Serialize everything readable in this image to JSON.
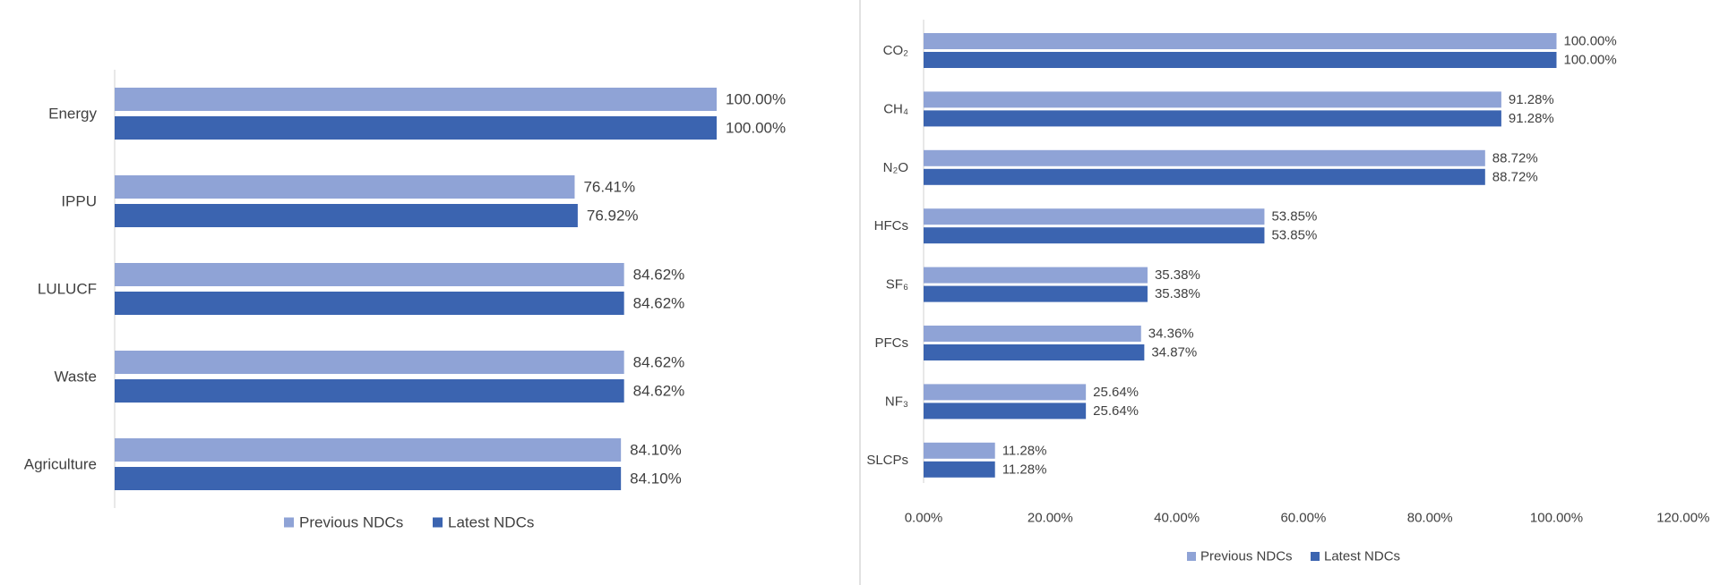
{
  "chart_data": [
    {
      "type": "bar",
      "orientation": "horizontal",
      "categories": [
        "Energy",
        "IPPU",
        "LULUCF",
        "Waste",
        "Agriculture"
      ],
      "series": [
        {
          "name": "Previous NDCs",
          "values": [
            100.0,
            76.41,
            84.62,
            84.62,
            84.1
          ],
          "labels": [
            "100.00%",
            "76.41%",
            "84.62%",
            "84.62%",
            "84.10%"
          ],
          "color": "#8FA3D6"
        },
        {
          "name": "Latest NDCs",
          "values": [
            100.0,
            76.92,
            84.62,
            84.62,
            84.1
          ],
          "labels": [
            "100.00%",
            "76.92%",
            "84.62%",
            "84.62%",
            "84.10%"
          ],
          "color": "#3B64B0"
        }
      ],
      "xlim": [
        0,
        100
      ],
      "xticks": [],
      "grid": false,
      "legend": "bottom"
    },
    {
      "type": "bar",
      "orientation": "horizontal",
      "categories": [
        "CO₂",
        "CH₄",
        "N₂O",
        "HFCs",
        "SF₆",
        "PFCs",
        "NF₃",
        "SLCPs"
      ],
      "series": [
        {
          "name": "Previous NDCs",
          "values": [
            100.0,
            91.28,
            88.72,
            53.85,
            35.38,
            34.36,
            25.64,
            11.28
          ],
          "labels": [
            "100.00%",
            "91.28%",
            "88.72%",
            "53.85%",
            "35.38%",
            "34.36%",
            "25.64%",
            "11.28%"
          ],
          "color": "#8FA3D6"
        },
        {
          "name": "Latest NDCs",
          "values": [
            100.0,
            91.28,
            88.72,
            53.85,
            35.38,
            34.87,
            25.64,
            11.28
          ],
          "labels": [
            "100.00%",
            "91.28%",
            "88.72%",
            "53.85%",
            "35.38%",
            "34.87%",
            "25.64%",
            "11.28%"
          ],
          "color": "#3B64B0"
        }
      ],
      "xlim": [
        0,
        120
      ],
      "xticks": [
        "0.00%",
        "20.00%",
        "40.00%",
        "60.00%",
        "80.00%",
        "100.00%",
        "120.00%"
      ],
      "grid": false,
      "legend": "bottom"
    }
  ]
}
